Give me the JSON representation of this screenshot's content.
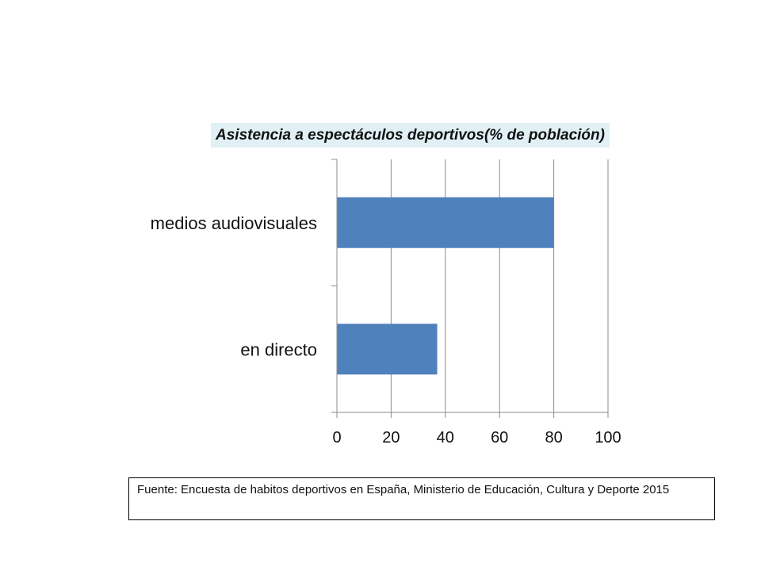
{
  "source": {
    "text": "Fuente: Encuesta de habitos  deportivos en España, Ministerio de Educación, Cultura y Deporte 2015"
  },
  "colors": {
    "bar": "#4f81bd",
    "grid": "#8c8c8c",
    "title_bg": "#e0f0f5"
  },
  "chart_data": {
    "type": "bar",
    "orientation": "horizontal",
    "title": "Asistencia a espectáculos deportivos(% de población)",
    "categories": [
      "medios audiovisuales",
      "en directo"
    ],
    "values": [
      80,
      37
    ],
    "xlim": [
      0,
      100
    ],
    "xticks": [
      "0",
      "20",
      "40",
      "60",
      "80",
      "100"
    ],
    "grid": true,
    "legend": "none"
  }
}
